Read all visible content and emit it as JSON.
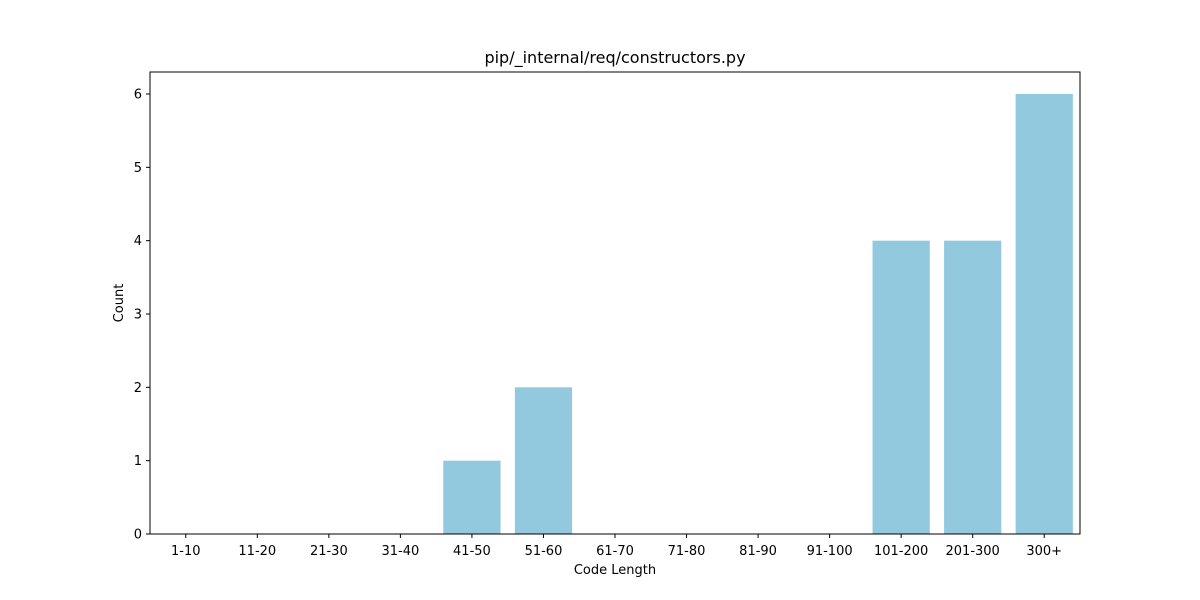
{
  "chart_data": {
    "type": "bar",
    "title": "pip/_internal/req/constructors.py",
    "xlabel": "Code Length",
    "ylabel": "Count",
    "categories": [
      "1-10",
      "11-20",
      "21-30",
      "31-40",
      "41-50",
      "51-60",
      "61-70",
      "71-80",
      "81-90",
      "91-100",
      "101-200",
      "201-300",
      "300+"
    ],
    "values": [
      0,
      0,
      0,
      0,
      1,
      2,
      0,
      0,
      0,
      0,
      4,
      4,
      6
    ],
    "yticks": [
      0,
      1,
      2,
      3,
      4,
      5,
      6
    ],
    "ylim": [
      0,
      6.3
    ],
    "grid": false,
    "colors": {
      "bar": "#92c9df"
    }
  }
}
